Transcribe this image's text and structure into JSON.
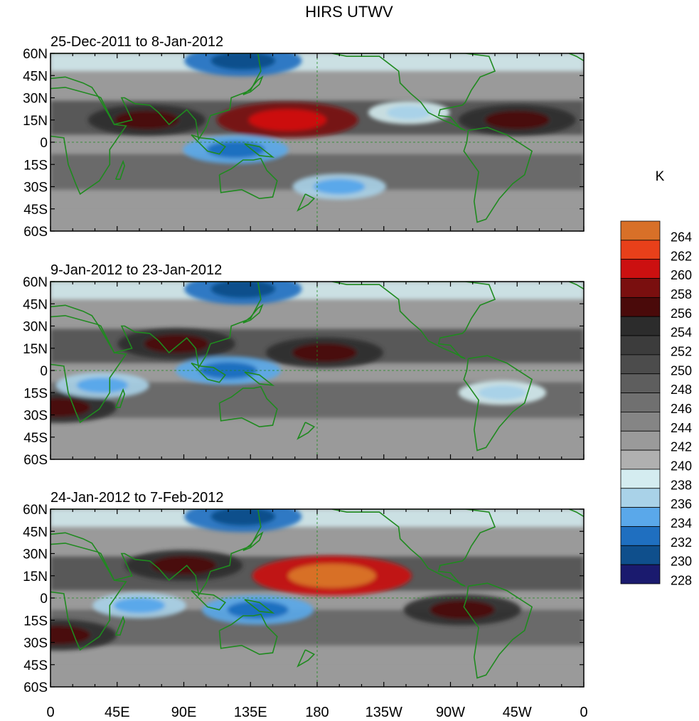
{
  "title": "HIRS UTWV",
  "colorbar": {
    "unit_label": "K",
    "levels": [
      228,
      230,
      232,
      234,
      236,
      238,
      240,
      242,
      244,
      246,
      248,
      250,
      252,
      254,
      256,
      258,
      260,
      262,
      264
    ],
    "colors": [
      "#1a1a6e",
      "#0f4f8c",
      "#1f6fc0",
      "#5aa8ea",
      "#a9d2e8",
      "#d4ecf0",
      "#b0b0b0",
      "#9a9a9a",
      "#858585",
      "#707070",
      "#5e5e5e",
      "#4c4c4c",
      "#3c3c3c",
      "#2c2c2c",
      "#4a0a0a",
      "#7a0f0f",
      "#cc1010",
      "#e8401a",
      "#d87028"
    ],
    "tick_labels": [
      "228",
      "230",
      "232",
      "234",
      "236",
      "238",
      "240",
      "242",
      "244",
      "246",
      "248",
      "250",
      "252",
      "254",
      "256",
      "258",
      "260",
      "262",
      "264"
    ]
  },
  "axis": {
    "y_ticks": [
      "60N",
      "45N",
      "30N",
      "15N",
      "0",
      "15S",
      "30S",
      "45S",
      "60S"
    ],
    "x_ticks": [
      "0",
      "45E",
      "90E",
      "135E",
      "180",
      "135W",
      "90W",
      "45W",
      "0"
    ]
  },
  "chart_data": [
    {
      "type": "heatmap",
      "title": "25-Dec-2011 to 8-Jan-2012",
      "variable": "HIRS UTWV",
      "unit": "K",
      "lon_range": [
        0,
        360
      ],
      "lat_range": [
        -60,
        60
      ],
      "features": [
        {
          "label": "high",
          "lon": 160,
          "lat": 15,
          "value": 261
        },
        {
          "label": "high",
          "lon": 315,
          "lat": 15,
          "value": 257
        },
        {
          "label": "high",
          "lon": 65,
          "lat": 15,
          "value": 257
        },
        {
          "label": "low",
          "lon": 125,
          "lat": -5,
          "value": 233
        },
        {
          "label": "low",
          "lon": 195,
          "lat": -30,
          "value": 235
        },
        {
          "label": "low",
          "lon": 242,
          "lat": 20,
          "value": 237
        },
        {
          "label": "low",
          "lon": 130,
          "lat": 55,
          "value": 231
        }
      ]
    },
    {
      "type": "heatmap",
      "title": "9-Jan-2012 to 23-Jan-2012",
      "variable": "HIRS UTWV",
      "unit": "K",
      "lon_range": [
        0,
        360
      ],
      "lat_range": [
        -60,
        60
      ],
      "features": [
        {
          "label": "high",
          "lon": 85,
          "lat": 18,
          "value": 257
        },
        {
          "label": "high",
          "lon": 185,
          "lat": 12,
          "value": 257
        },
        {
          "label": "high",
          "lon": 5,
          "lat": -25,
          "value": 257
        },
        {
          "label": "low",
          "lon": 120,
          "lat": 0,
          "value": 233
        },
        {
          "label": "low",
          "lon": 35,
          "lat": -10,
          "value": 235
        },
        {
          "label": "low",
          "lon": 305,
          "lat": -15,
          "value": 236
        },
        {
          "label": "low",
          "lon": 130,
          "lat": 55,
          "value": 231
        }
      ]
    },
    {
      "type": "heatmap",
      "title": "24-Jan-2012 to 7-Feb-2012",
      "variable": "HIRS UTWV",
      "unit": "K",
      "lon_range": [
        0,
        360
      ],
      "lat_range": [
        -60,
        60
      ],
      "features": [
        {
          "label": "high",
          "lon": 190,
          "lat": 15,
          "value": 264
        },
        {
          "label": "high",
          "lon": 90,
          "lat": 22,
          "value": 257
        },
        {
          "label": "high",
          "lon": 278,
          "lat": -8,
          "value": 257
        },
        {
          "label": "high",
          "lon": 5,
          "lat": -25,
          "value": 257
        },
        {
          "label": "low",
          "lon": 140,
          "lat": -8,
          "value": 232
        },
        {
          "label": "low",
          "lon": 60,
          "lat": -5,
          "value": 235
        },
        {
          "label": "low",
          "lon": 130,
          "lat": 55,
          "value": 231
        }
      ]
    }
  ]
}
